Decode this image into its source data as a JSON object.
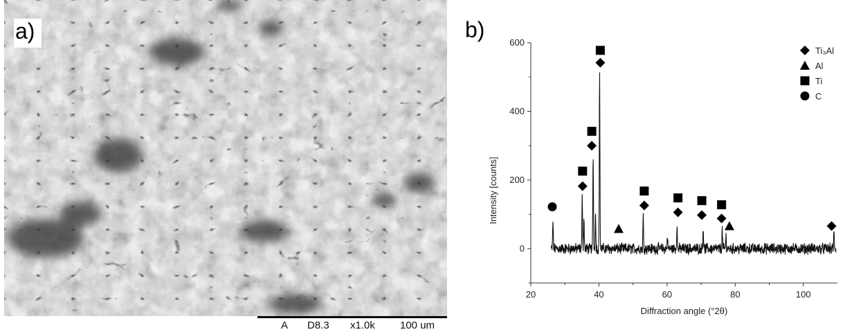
{
  "panel_a": {
    "label": "a)",
    "scale_bar": {
      "detector": "A",
      "working_distance": "D8.3",
      "magnification": "x1.0k",
      "scale": "100 um"
    }
  },
  "panel_b": {
    "label": "b)"
  },
  "chart_data": {
    "type": "line",
    "xlabel": "Diffraction angle (°2θ)",
    "ylabel": "Intensity [counts]",
    "xlim": [
      20,
      110
    ],
    "ylim": [
      -100,
      600
    ],
    "xticks": [
      20,
      40,
      60,
      80,
      100
    ],
    "yticks": [
      0,
      200,
      400,
      600
    ],
    "grid": false,
    "legend_position": "top-right",
    "legend": [
      {
        "label": "Ti₃Al",
        "marker": "diamond"
      },
      {
        "label": "Al",
        "marker": "triangle"
      },
      {
        "label": "Ti",
        "marker": "square"
      },
      {
        "label": "C",
        "marker": "circle"
      }
    ],
    "peaks": [
      {
        "x": 26.5,
        "y": 80
      },
      {
        "x": 35.1,
        "y": 155
      },
      {
        "x": 35.6,
        "y": 90
      },
      {
        "x": 38.3,
        "y": 275
      },
      {
        "x": 39.0,
        "y": 100
      },
      {
        "x": 40.2,
        "y": 515
      },
      {
        "x": 53.0,
        "y": 95
      },
      {
        "x": 60.1,
        "y": 35
      },
      {
        "x": 62.9,
        "y": 70
      },
      {
        "x": 70.6,
        "y": 65
      },
      {
        "x": 76.2,
        "y": 55
      },
      {
        "x": 77.3,
        "y": 35
      },
      {
        "x": 109.0,
        "y": 45
      }
    ],
    "markers": [
      {
        "marker": "circle",
        "x": 26.3,
        "y": 122
      },
      {
        "marker": "square",
        "x": 35.2,
        "y": 226
      },
      {
        "marker": "diamond",
        "x": 35.2,
        "y": 182
      },
      {
        "marker": "square",
        "x": 37.9,
        "y": 342
      },
      {
        "marker": "diamond",
        "x": 37.9,
        "y": 300
      },
      {
        "marker": "square",
        "x": 40.4,
        "y": 578
      },
      {
        "marker": "diamond",
        "x": 40.4,
        "y": 542
      },
      {
        "marker": "triangle",
        "x": 45.8,
        "y": 58
      },
      {
        "marker": "square",
        "x": 53.3,
        "y": 168
      },
      {
        "marker": "diamond",
        "x": 53.3,
        "y": 126
      },
      {
        "marker": "square",
        "x": 63.2,
        "y": 148
      },
      {
        "marker": "diamond",
        "x": 63.2,
        "y": 106
      },
      {
        "marker": "square",
        "x": 70.2,
        "y": 140
      },
      {
        "marker": "diamond",
        "x": 70.2,
        "y": 98
      },
      {
        "marker": "square",
        "x": 76.0,
        "y": 128
      },
      {
        "marker": "diamond",
        "x": 76.0,
        "y": 88
      },
      {
        "marker": "triangle",
        "x": 78.3,
        "y": 66
      },
      {
        "marker": "diamond",
        "x": 108.3,
        "y": 66
      }
    ]
  }
}
